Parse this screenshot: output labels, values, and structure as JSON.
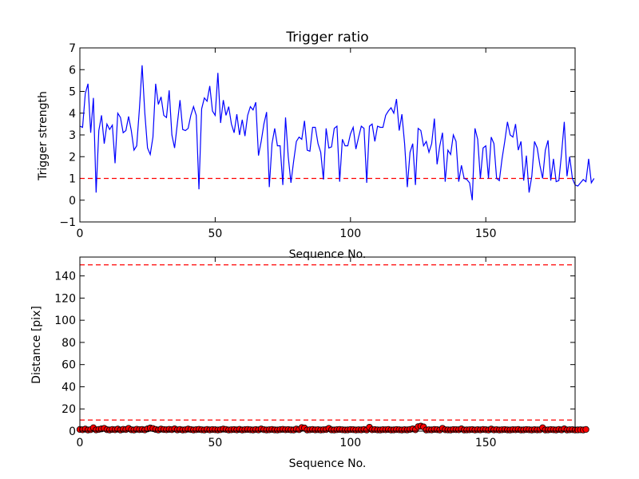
{
  "chart_data": [
    {
      "type": "line",
      "title": "Trigger ratio",
      "xlabel": "Sequence No.",
      "ylabel": "Trigger strength",
      "xlim": [
        0,
        183
      ],
      "ylim": [
        -1,
        7
      ],
      "xticks": [
        0,
        50,
        100,
        150
      ],
      "yticks": [
        -1,
        0,
        1,
        2,
        3,
        4,
        5,
        6,
        7
      ],
      "series": [
        {
          "color": "#0000ff",
          "values": [
            3.4,
            3.35,
            4.9,
            5.35,
            3.1,
            4.7,
            0.35,
            3.2,
            3.9,
            2.6,
            3.5,
            3.25,
            3.45,
            1.7,
            4.0,
            3.8,
            3.1,
            3.2,
            3.85,
            3.2,
            2.3,
            2.5,
            4.2,
            6.2,
            4.0,
            2.4,
            2.1,
            2.9,
            5.35,
            4.4,
            4.75,
            3.9,
            3.8,
            5.05,
            3.0,
            2.4,
            3.5,
            4.6,
            3.25,
            3.2,
            3.3,
            3.9,
            4.3,
            3.9,
            0.5,
            4.2,
            4.7,
            4.55,
            5.25,
            4.1,
            3.9,
            5.85,
            3.55,
            4.6,
            3.9,
            4.3,
            3.5,
            3.1,
            3.95,
            3.0,
            3.7,
            2.95,
            3.9,
            4.3,
            4.15,
            4.5,
            2.05,
            2.7,
            3.5,
            4.05,
            0.6,
            2.6,
            3.3,
            2.5,
            2.5,
            0.7,
            3.8,
            2.0,
            0.8,
            1.8,
            2.7,
            2.9,
            2.8,
            3.65,
            2.3,
            2.25,
            3.35,
            3.35,
            2.6,
            2.2,
            0.95,
            3.3,
            2.4,
            2.45,
            3.3,
            3.4,
            0.85,
            2.8,
            2.5,
            2.5,
            3.05,
            3.35,
            2.35,
            2.9,
            3.4,
            3.3,
            0.8,
            3.4,
            3.5,
            2.7,
            3.4,
            3.35,
            3.35,
            3.9,
            4.1,
            4.25,
            4.0,
            4.65,
            3.2,
            3.95,
            2.6,
            0.6,
            2.2,
            2.6,
            0.7,
            3.3,
            3.2,
            2.5,
            2.7,
            2.2,
            2.6,
            3.75,
            1.65,
            2.5,
            3.1,
            0.85,
            2.3,
            2.1,
            3.0,
            2.7,
            0.85,
            1.6,
            1.0,
            0.95,
            0.8,
            0.0,
            3.3,
            2.8,
            1.0,
            2.4,
            2.5,
            1.0,
            2.9,
            2.6,
            1.0,
            0.9,
            1.9,
            2.7,
            3.6,
            3.0,
            2.9,
            3.5,
            2.3,
            2.7,
            0.9,
            2.05,
            0.35,
            1.1,
            2.7,
            2.4,
            1.6,
            1.0,
            2.3,
            2.75,
            0.9,
            1.9,
            0.85,
            0.9,
            2.15,
            3.6,
            1.1,
            2.0,
            1.0,
            0.7,
            0.65,
            0.8,
            0.95,
            0.85,
            1.9,
            0.8,
            1.0
          ]
        }
      ],
      "hlines": [
        {
          "y": 1.0,
          "color": "#ff0000",
          "style": "dashed"
        }
      ],
      "grid": false
    },
    {
      "type": "scatter",
      "title": "",
      "xlabel": "Sequence No.",
      "ylabel": "Distance [pix]",
      "xlim": [
        0,
        183
      ],
      "ylim": [
        0,
        157
      ],
      "xticks": [
        0,
        50,
        100,
        150
      ],
      "yticks": [
        0,
        20,
        40,
        60,
        80,
        100,
        120,
        140
      ],
      "series": [
        {
          "color": "#ff0000",
          "line_color": "#0000ff",
          "marker": "circle",
          "values": [
            1.5,
            1.2,
            1.8,
            1.0,
            1.3,
            3.0,
            1.1,
            1.5,
            2.0,
            2.5,
            1.3,
            1.0,
            1.5,
            1.2,
            1.8,
            1.0,
            1.6,
            1.4,
            2.5,
            1.2,
            1.0,
            1.7,
            1.3,
            1.5,
            1.1,
            2.0,
            2.8,
            2.3,
            1.5,
            1.0,
            1.8,
            1.4,
            1.2,
            1.6,
            1.3,
            2.0,
            1.1,
            1.5,
            1.0,
            1.2,
            1.8,
            1.4,
            1.0,
            1.3,
            1.6,
            1.2,
            1.0,
            1.5,
            1.1,
            1.4,
            1.2,
            1.0,
            1.3,
            1.8,
            1.5,
            1.0,
            1.2,
            1.4,
            1.1,
            1.6,
            1.0,
            1.3,
            1.5,
            1.2,
            1.0,
            1.4,
            1.1,
            1.9,
            1.3,
            1.0,
            1.2,
            1.5,
            1.1,
            1.0,
            1.3,
            1.6,
            1.2,
            1.4,
            1.1,
            1.0,
            1.8,
            1.3,
            3.2,
            2.8,
            1.0,
            1.2,
            1.5,
            1.1,
            1.3,
            1.0,
            1.2,
            1.4,
            2.5,
            1.1,
            1.0,
            1.3,
            1.5,
            1.2,
            1.0,
            1.1,
            1.4,
            1.3,
            1.0,
            1.2,
            1.1,
            1.5,
            1.0,
            3.5,
            1.2,
            1.4,
            1.1,
            1.0,
            1.3,
            1.2,
            1.5,
            1.0,
            1.1,
            1.4,
            1.2,
            1.0,
            1.3,
            1.1,
            1.5,
            2.0,
            1.2,
            4.0,
            4.5,
            3.8,
            1.0,
            1.2,
            1.1,
            1.5,
            1.3,
            1.0,
            2.5,
            1.2,
            1.1,
            1.0,
            1.4,
            1.3,
            1.2,
            2.0,
            1.0,
            1.1,
            1.2,
            1.4,
            1.0,
            1.3,
            1.1,
            1.5,
            1.2,
            1.0,
            1.8,
            1.1,
            1.3,
            1.0,
            1.2,
            1.4,
            1.1,
            1.0,
            1.3,
            1.2,
            1.5,
            1.0,
            1.1,
            1.4,
            1.2,
            1.0,
            1.3,
            1.1,
            1.2,
            3.0,
            1.0,
            1.1,
            1.4,
            1.2,
            1.0,
            1.5,
            1.1,
            2.0,
            1.0,
            1.2,
            1.3,
            1.0,
            1.1,
            1.2,
            1.0,
            1.5
          ]
        }
      ],
      "hlines": [
        {
          "y": 150,
          "color": "#ff0000",
          "style": "dashed"
        },
        {
          "y": 10,
          "color": "#ff0000",
          "style": "dashed"
        }
      ],
      "grid": false
    }
  ]
}
